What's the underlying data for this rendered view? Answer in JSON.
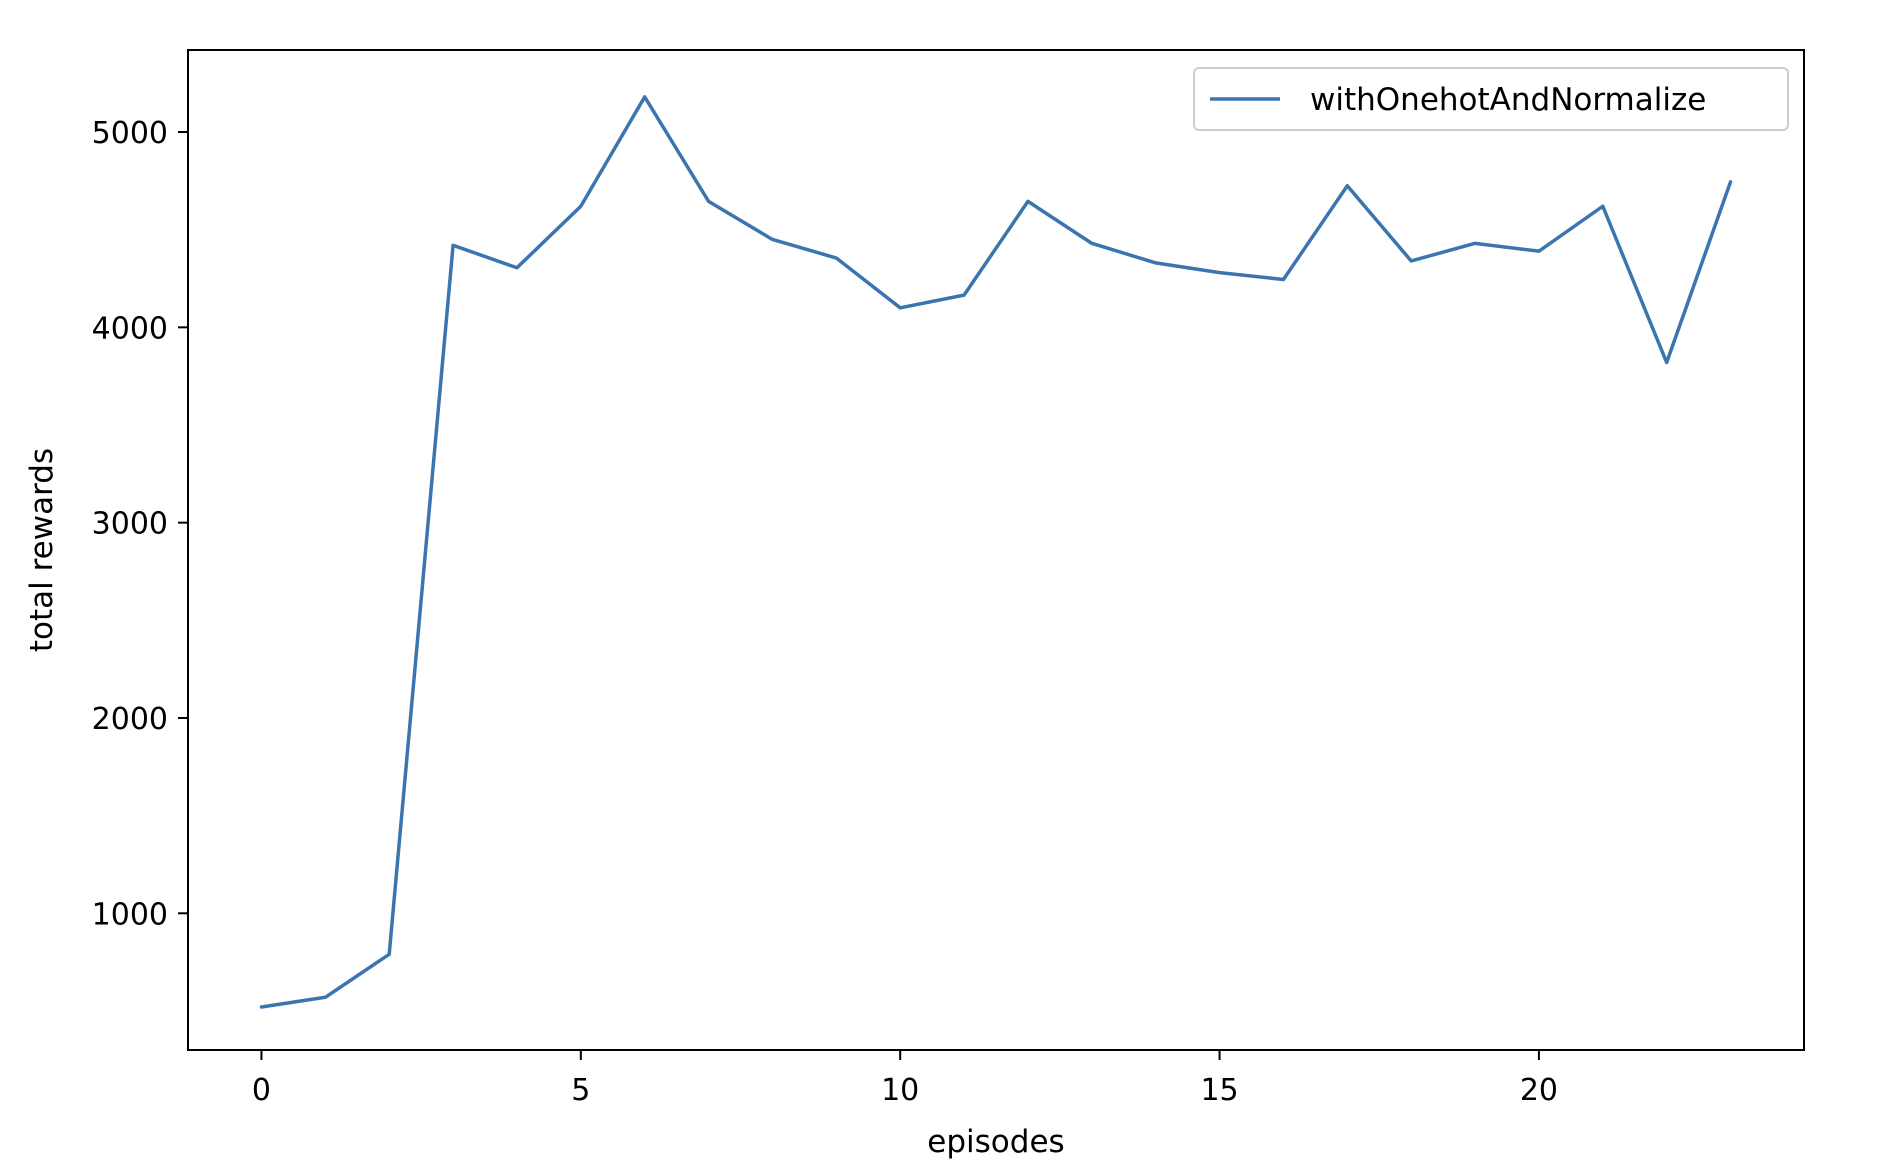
{
  "chart_data": {
    "type": "line",
    "title": "",
    "xlabel": "episodes",
    "ylabel": "total rewards",
    "xlim": [
      -1.15,
      24.15
    ],
    "ylim": [
      300,
      5420
    ],
    "xticks": [
      0,
      5,
      10,
      15,
      20
    ],
    "xtick_labels": [
      "0",
      "5",
      "10",
      "15",
      "20"
    ],
    "yticks": [
      1000,
      2000,
      3000,
      4000,
      5000
    ],
    "ytick_labels": [
      "1000",
      "2000",
      "3000",
      "4000",
      "5000"
    ],
    "grid": false,
    "legend_position": "top-right",
    "series": [
      {
        "name": "withOnehotAndNormalize",
        "color": "#3b75af",
        "x": [
          0,
          1,
          2,
          3,
          4,
          5,
          6,
          7,
          8,
          9,
          10,
          11,
          12,
          13,
          14,
          15,
          16,
          17,
          18,
          19,
          20,
          21,
          22,
          23
        ],
        "y": [
          520,
          570,
          790,
          4420,
          4305,
          4620,
          5180,
          4645,
          4450,
          4355,
          4100,
          4165,
          4645,
          4430,
          4330,
          4280,
          4245,
          4725,
          4340,
          4430,
          4390,
          4620,
          3820,
          4745
        ]
      }
    ]
  }
}
